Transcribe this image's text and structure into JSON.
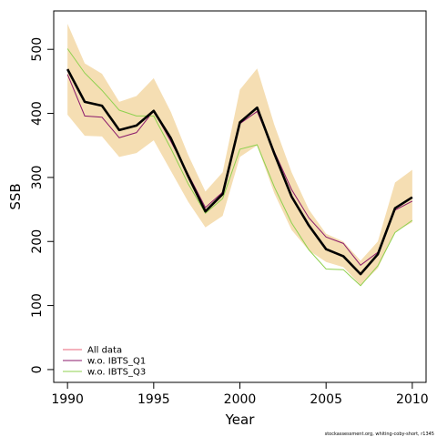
{
  "chart_data": {
    "type": "line",
    "xlabel": "Year",
    "ylabel": "SSB",
    "xlim": [
      1989.2,
      2010.8
    ],
    "ylim": [
      -20,
      560
    ],
    "x_ticks": [
      1990,
      1995,
      2000,
      2005,
      2010
    ],
    "y_ticks": [
      0,
      100,
      200,
      300,
      400,
      500
    ],
    "grid": false,
    "legend_position": "bottom-left",
    "x": [
      1990,
      1991,
      1992,
      1993,
      1994,
      1995,
      1996,
      1997,
      1998,
      1999,
      2000,
      2001,
      2002,
      2003,
      2004,
      2005,
      2006,
      2007,
      2008,
      2009,
      2010
    ],
    "confidence_band": {
      "color": "#f5deb3",
      "upper": [
        540,
        478,
        462,
        418,
        427,
        455,
        402,
        335,
        278,
        308,
        437,
        470,
        382,
        308,
        250,
        212,
        200,
        170,
        200,
        292,
        312
      ],
      "lower": [
        398,
        365,
        364,
        332,
        338,
        358,
        310,
        262,
        222,
        240,
        332,
        350,
        275,
        218,
        186,
        168,
        160,
        132,
        158,
        215,
        230
      ]
    },
    "main_series": {
      "color": "#000000",
      "values": [
        469,
        418,
        412,
        374,
        381,
        404,
        361,
        302,
        247,
        274,
        386,
        409,
        337,
        270,
        225,
        188,
        177,
        149,
        180,
        252,
        269
      ]
    },
    "series": [
      {
        "name": "All data",
        "color": "#e8637a",
        "values": [
          469,
          418,
          412,
          374,
          381,
          404,
          361,
          302,
          247,
          274,
          386,
          409,
          337,
          270,
          225,
          188,
          177,
          149,
          180,
          252,
          269
        ]
      },
      {
        "name": "w.o. IBTS_Q1",
        "color": "#8b1a6b",
        "values": [
          461,
          396,
          394,
          362,
          370,
          404,
          356,
          305,
          253,
          277,
          384,
          403,
          340,
          281,
          237,
          207,
          197,
          163,
          183,
          249,
          263
        ]
      },
      {
        "name": "w.o. IBTS_Q3",
        "color": "#8fd14f",
        "values": [
          501,
          463,
          436,
          405,
          396,
          396,
          345,
          290,
          244,
          267,
          344,
          351,
          285,
          229,
          187,
          157,
          156,
          131,
          162,
          214,
          233
        ]
      }
    ]
  },
  "footnote": "stockassessment.org, whiting-coby-short, r1345"
}
